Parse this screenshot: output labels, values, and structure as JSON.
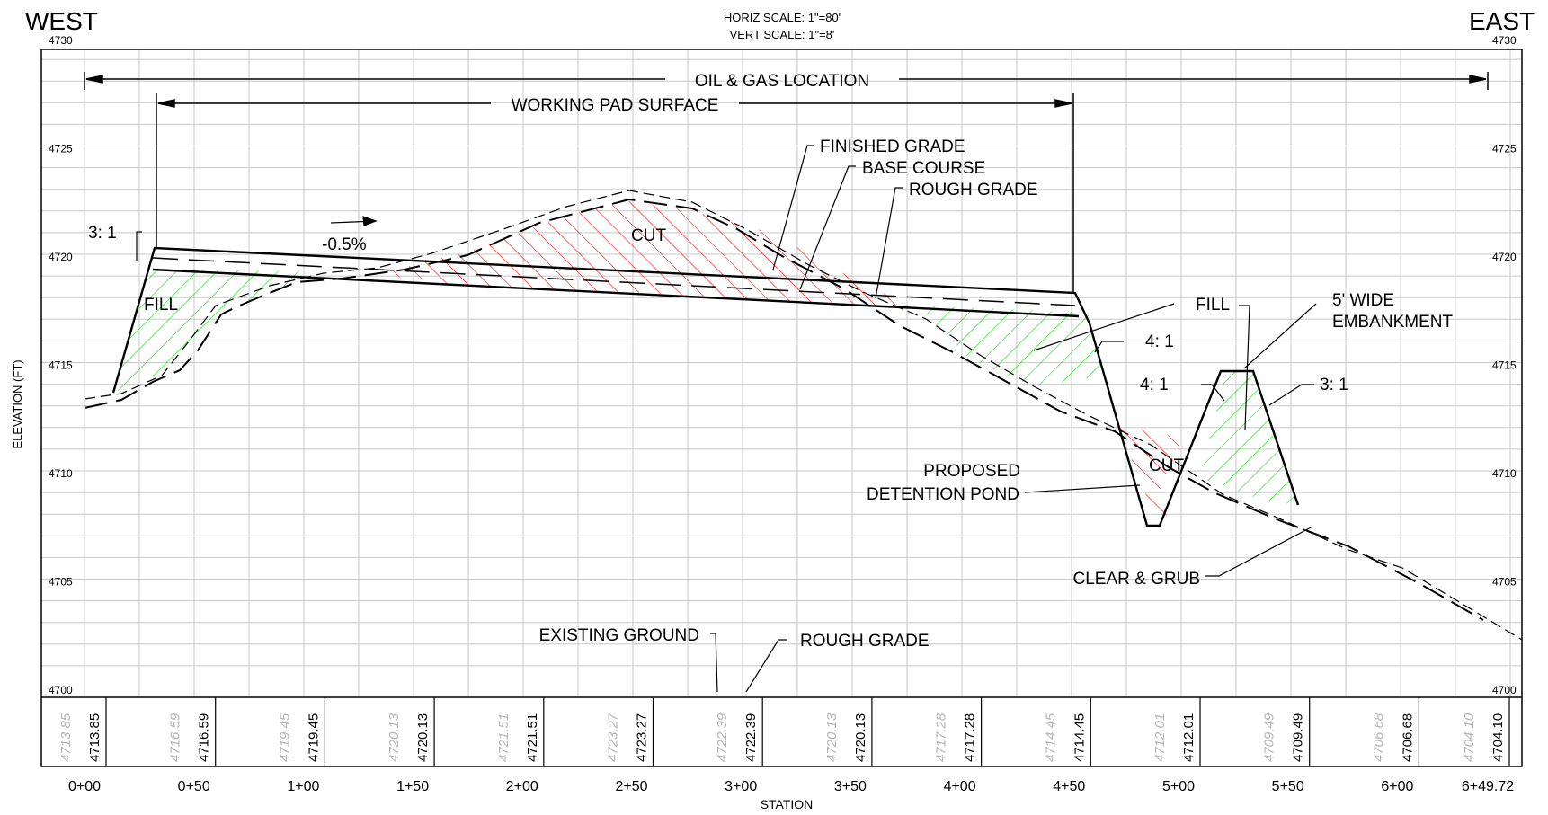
{
  "header": {
    "west": "WEST",
    "east": "EAST",
    "scale_h": "HORIZ SCALE: 1\"=80'",
    "scale_v": "VERT SCALE: 1\"=8'"
  },
  "axes": {
    "y_label": "ELEVATION (FT)",
    "x_label": "STATION",
    "elev_ticks": [
      "4730",
      "4725",
      "4720",
      "4715",
      "4710",
      "4705",
      "4700"
    ],
    "stations": [
      "0+00",
      "0+50",
      "1+00",
      "1+50",
      "2+00",
      "2+50",
      "3+00",
      "3+50",
      "4+00",
      "4+50",
      "5+00",
      "5+50",
      "6+00",
      "6+49.72"
    ]
  },
  "annotations": {
    "oil_gas": "OIL & GAS LOCATION",
    "working_pad": "WORKING PAD SURFACE",
    "finished_grade": "FINISHED GRADE",
    "base_course": "BASE COURSE",
    "rough_grade_top": "ROUGH GRADE",
    "slope_pct": "-0.5%",
    "ratio_west": "3: 1",
    "fill_west": "FILL",
    "cut_main": "CUT",
    "fill_east": "FILL",
    "ratio_41a": "4: 1",
    "ratio_41b": "4: 1",
    "ratio_31": "3: 1",
    "embankment_1": "5' WIDE",
    "embankment_2": "EMBANKMENT",
    "cut_pond": "CUT",
    "pond_1": "PROPOSED",
    "pond_2": "DETENTION POND",
    "clear_grub": "CLEAR & GRUB",
    "existing_ground": "EXISTING GROUND",
    "rough_grade_bottom": "ROUGH GRADE"
  },
  "elevation_table": {
    "existing": [
      "4713.85",
      "4716.59",
      "4719.45",
      "4720.13",
      "4721.51",
      "4723.27",
      "4722.39",
      "4720.13",
      "4717.28",
      "4714.45",
      "4712.01",
      "4709.49",
      "4706.68",
      "4704.10"
    ],
    "proposed": [
      "4713.85",
      "4716.59",
      "4719.45",
      "4720.13",
      "4721.51",
      "4723.27",
      "4722.39",
      "4720.13",
      "4717.28",
      "4714.45",
      "4712.01",
      "4709.49",
      "4706.68",
      "4704.10"
    ]
  },
  "colors": {
    "cut_hatch": "#ff0000",
    "fill_hatch": "#00e000",
    "grid": "#c8c8c8",
    "line": "#000000",
    "faded_text": "#b4b4b4"
  }
}
